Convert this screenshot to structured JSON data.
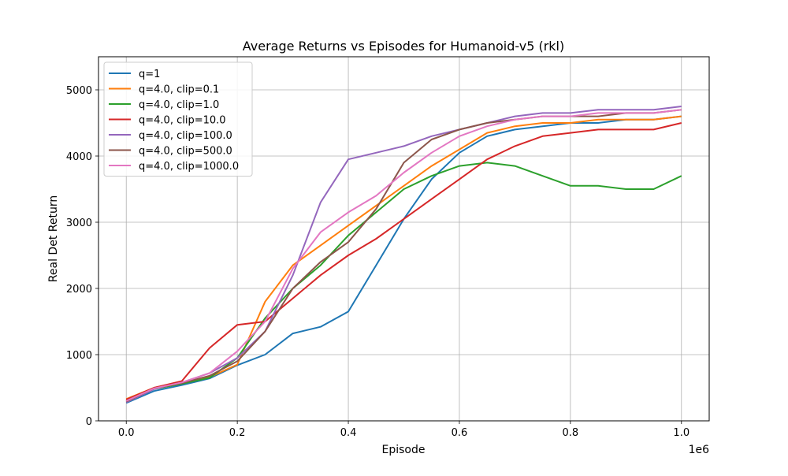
{
  "chart_data": {
    "type": "line",
    "title": "Average Returns vs Episodes for Humanoid-v5 (rkl)",
    "xlabel": "Episode",
    "ylabel": "Real Det Return",
    "x_offset_label": "1e6",
    "xlim": [
      -0.05,
      1.05
    ],
    "ylim": [
      0,
      5500
    ],
    "x_ticks": [
      0.0,
      0.2,
      0.4,
      0.6,
      0.8,
      1.0
    ],
    "x_tick_labels": [
      "0.0",
      "0.2",
      "0.4",
      "0.6",
      "0.8",
      "1.0"
    ],
    "y_ticks": [
      0,
      1000,
      2000,
      3000,
      4000,
      5000
    ],
    "y_tick_labels": [
      "0",
      "1000",
      "2000",
      "3000",
      "4000",
      "5000"
    ],
    "grid": true,
    "legend_position": "upper-left",
    "series": [
      {
        "name": "q=1",
        "color": "#1f77b4",
        "x": [
          0.0,
          0.05,
          0.1,
          0.15,
          0.2,
          0.25,
          0.3,
          0.35,
          0.4,
          0.45,
          0.5,
          0.55,
          0.6,
          0.65,
          0.7,
          0.75,
          0.8,
          0.85,
          0.9,
          0.95,
          1.0
        ],
        "y": [
          270,
          450,
          540,
          640,
          840,
          1000,
          1320,
          1420,
          1650,
          2350,
          3050,
          3650,
          4050,
          4300,
          4400,
          4450,
          4500,
          4500,
          4550,
          4550,
          4600
        ]
      },
      {
        "name": "q=4.0, clip=0.1",
        "color": "#ff7f0e",
        "x": [
          0.0,
          0.05,
          0.1,
          0.15,
          0.2,
          0.25,
          0.3,
          0.35,
          0.4,
          0.45,
          0.5,
          0.55,
          0.6,
          0.65,
          0.7,
          0.75,
          0.8,
          0.85,
          0.9,
          0.95,
          1.0
        ],
        "y": [
          330,
          500,
          580,
          660,
          850,
          1800,
          2350,
          2650,
          2950,
          3250,
          3550,
          3850,
          4100,
          4350,
          4450,
          4500,
          4500,
          4550,
          4550,
          4550,
          4600
        ]
      },
      {
        "name": "q=4.0, clip=1.0",
        "color": "#2ca02c",
        "x": [
          0.0,
          0.05,
          0.1,
          0.15,
          0.2,
          0.25,
          0.3,
          0.35,
          0.4,
          0.45,
          0.5,
          0.55,
          0.6,
          0.65,
          0.7,
          0.75,
          0.8,
          0.85,
          0.9,
          0.95,
          1.0
        ],
        "y": [
          300,
          480,
          560,
          650,
          950,
          1550,
          2000,
          2350,
          2800,
          3150,
          3500,
          3700,
          3850,
          3900,
          3850,
          3700,
          3550,
          3550,
          3500,
          3500,
          3700
        ]
      },
      {
        "name": "q=4.0, clip=10.0",
        "color": "#d62728",
        "x": [
          0.0,
          0.05,
          0.1,
          0.15,
          0.2,
          0.25,
          0.3,
          0.35,
          0.4,
          0.45,
          0.5,
          0.55,
          0.6,
          0.65,
          0.7,
          0.75,
          0.8,
          0.85,
          0.9,
          0.95,
          1.0
        ],
        "y": [
          320,
          500,
          600,
          1100,
          1450,
          1500,
          1850,
          2200,
          2500,
          2750,
          3050,
          3350,
          3650,
          3950,
          4150,
          4300,
          4350,
          4400,
          4400,
          4400,
          4500
        ]
      },
      {
        "name": "q=4.0, clip=100.0",
        "color": "#9467bd",
        "x": [
          0.0,
          0.05,
          0.1,
          0.15,
          0.2,
          0.25,
          0.3,
          0.35,
          0.4,
          0.45,
          0.5,
          0.55,
          0.6,
          0.65,
          0.7,
          0.75,
          0.8,
          0.85,
          0.9,
          0.95,
          1.0
        ],
        "y": [
          280,
          480,
          580,
          720,
          950,
          1350,
          2200,
          3300,
          3950,
          4050,
          4150,
          4300,
          4400,
          4500,
          4600,
          4650,
          4650,
          4700,
          4700,
          4700,
          4750
        ]
      },
      {
        "name": "q=4.0, clip=500.0",
        "color": "#8c564b",
        "x": [
          0.0,
          0.05,
          0.1,
          0.15,
          0.2,
          0.25,
          0.3,
          0.35,
          0.4,
          0.45,
          0.5,
          0.55,
          0.6,
          0.65,
          0.7,
          0.75,
          0.8,
          0.85,
          0.9,
          0.95,
          1.0
        ],
        "y": [
          290,
          490,
          570,
          680,
          900,
          1350,
          2000,
          2400,
          2700,
          3200,
          3900,
          4250,
          4400,
          4500,
          4550,
          4600,
          4600,
          4600,
          4650,
          4650,
          4700
        ]
      },
      {
        "name": "q=4.0, clip=1000.0",
        "color": "#e377c2",
        "x": [
          0.0,
          0.05,
          0.1,
          0.15,
          0.2,
          0.25,
          0.3,
          0.35,
          0.4,
          0.45,
          0.5,
          0.55,
          0.6,
          0.65,
          0.7,
          0.75,
          0.8,
          0.85,
          0.9,
          0.95,
          1.0
        ],
        "y": [
          300,
          490,
          580,
          720,
          1050,
          1500,
          2300,
          2850,
          3150,
          3400,
          3750,
          4050,
          4300,
          4450,
          4550,
          4600,
          4600,
          4650,
          4650,
          4650,
          4700
        ]
      }
    ]
  }
}
